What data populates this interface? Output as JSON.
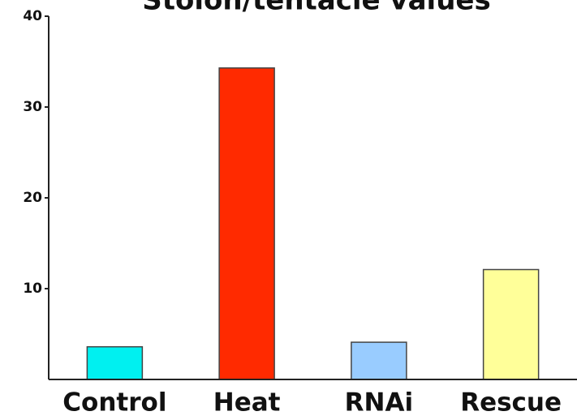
{
  "chart_data": {
    "type": "bar",
    "title": "Stolon/tentacle values",
    "categories": [
      "Control",
      "Heat",
      "RNAi",
      "Rescue"
    ],
    "series": [
      {
        "name": null,
        "colors": [
          "#00f0f0",
          "#ff2a00",
          "#99ccff",
          "#ffff99"
        ],
        "values": [
          3.6,
          34.3,
          4.1,
          12.1
        ]
      }
    ],
    "ylim": [
      0,
      40
    ],
    "yticks": [
      10,
      20,
      30,
      40
    ],
    "grid": false
  }
}
